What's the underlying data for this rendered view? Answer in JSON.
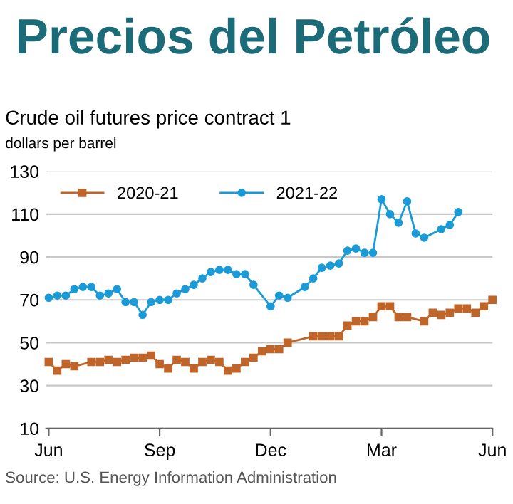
{
  "chart_data": {
    "type": "line",
    "title": "Precios del Petróleo",
    "subtitle": "Crude oil futures price contract 1",
    "ylabel": "dollars per barrel",
    "annotations": [
      "Source: U.S. Energy Information Administration"
    ],
    "categories": [
      "Jun",
      null,
      null,
      null,
      null,
      null,
      null,
      null,
      null,
      null,
      null,
      null,
      null,
      "Sep",
      null,
      null,
      null,
      null,
      null,
      null,
      null,
      null,
      null,
      null,
      null,
      null,
      "Dec",
      null,
      null,
      null,
      null,
      null,
      null,
      null,
      null,
      null,
      null,
      null,
      null,
      "Mar",
      null,
      null,
      null,
      null,
      null,
      null,
      null,
      null,
      null,
      null,
      null,
      null,
      "Jun"
    ],
    "ylim": [
      10,
      130
    ],
    "yticks": [
      10,
      30,
      50,
      70,
      90,
      110,
      130
    ],
    "grid": "y",
    "legend": "top left",
    "series": [
      {
        "name": "2020-21",
        "color": "#c0652a",
        "marker": "square",
        "values": [
          41,
          37,
          40,
          39,
          null,
          41,
          41,
          42,
          41,
          42,
          43,
          43,
          44,
          40,
          38,
          42,
          41,
          38,
          41,
          42,
          41,
          37,
          38,
          41,
          43,
          46,
          47,
          47,
          50,
          null,
          null,
          53,
          53,
          53,
          53,
          58,
          60,
          60,
          62,
          67,
          67,
          62,
          62,
          null,
          60,
          64,
          63,
          64,
          66,
          66,
          64,
          67,
          70
        ]
      },
      {
        "name": "2021-22",
        "color": "#1a9bd7",
        "marker": "circle",
        "values": [
          71,
          72,
          72,
          75,
          76,
          76,
          72,
          73,
          75,
          69,
          69,
          63,
          69,
          70,
          70,
          73,
          75,
          77,
          80,
          83,
          84,
          84,
          82,
          82,
          77,
          null,
          67,
          72,
          71,
          null,
          76,
          80,
          85,
          86,
          87,
          93,
          94,
          92,
          92,
          117,
          110,
          106,
          116,
          101,
          99,
          null,
          103,
          105,
          111,
          null,
          null,
          null,
          null
        ]
      }
    ]
  }
}
